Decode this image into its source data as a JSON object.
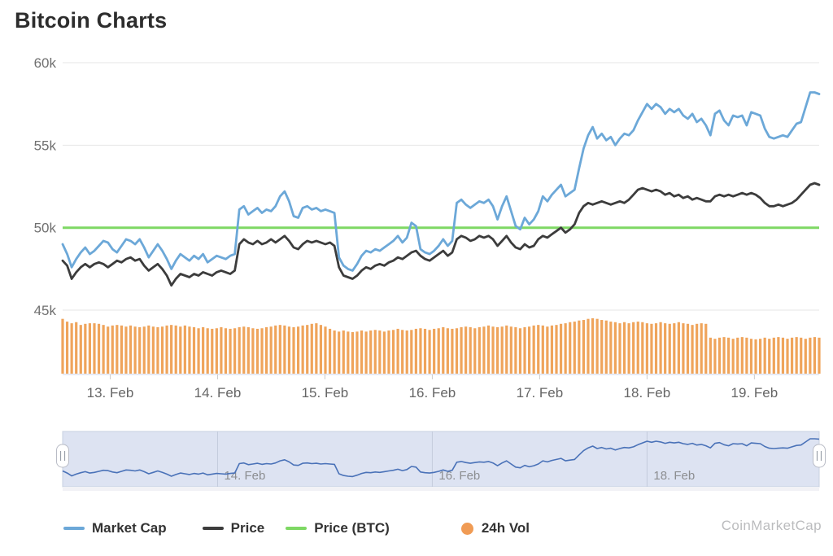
{
  "title": "Bitcoin Charts",
  "watermark": "CoinMarketCap",
  "legend": {
    "items": [
      {
        "label": "Market Cap",
        "color": "#6ca8d8",
        "swatch": "line"
      },
      {
        "label": "Price",
        "color": "#3c3c3c",
        "swatch": "line"
      },
      {
        "label": "Price (BTC)",
        "color": "#7ed864",
        "swatch": "line"
      },
      {
        "label": "24h Vol",
        "color": "#f09b54",
        "swatch": "dot"
      }
    ]
  },
  "chart_data": {
    "type": "line+bar",
    "title": "Bitcoin Charts",
    "interval": "hourly",
    "unit": "USD thousands (axis labels in k)",
    "grid": "horizontal gridlines on",
    "y_axis": {
      "labels": [
        "60k",
        "55k",
        "50k",
        "45k"
      ],
      "values": [
        60,
        55,
        50,
        45
      ],
      "ylim": [
        41,
        61
      ]
    },
    "x_ticks": [
      {
        "label": "13. Feb",
        "hour": 10.5
      },
      {
        "label": "14. Feb",
        "hour": 34.2
      },
      {
        "label": "15. Feb",
        "hour": 57.9
      },
      {
        "label": "16. Feb",
        "hour": 81.6
      },
      {
        "label": "17. Feb",
        "hour": 105.3
      },
      {
        "label": "18. Feb",
        "hour": 129.0
      },
      {
        "label": "19. Feb",
        "hour": 152.7
      }
    ],
    "series": [
      {
        "name": "Market Cap",
        "type": "line",
        "color": "#6ca8d8",
        "values": [
          49.0,
          48.4,
          47.6,
          48.1,
          48.5,
          48.8,
          48.4,
          48.6,
          48.9,
          49.2,
          49.1,
          48.7,
          48.5,
          48.9,
          49.3,
          49.2,
          49.0,
          49.3,
          48.8,
          48.2,
          48.6,
          49.0,
          48.6,
          48.1,
          47.5,
          48.0,
          48.4,
          48.2,
          48.0,
          48.3,
          48.1,
          48.4,
          47.9,
          48.1,
          48.3,
          48.2,
          48.1,
          48.3,
          48.4,
          51.1,
          51.3,
          50.8,
          51.0,
          51.2,
          50.9,
          51.1,
          51.0,
          51.3,
          51.9,
          52.2,
          51.6,
          50.7,
          50.6,
          51.2,
          51.3,
          51.1,
          51.2,
          51.0,
          51.1,
          51.0,
          50.9,
          48.2,
          47.7,
          47.5,
          47.4,
          47.8,
          48.3,
          48.6,
          48.5,
          48.7,
          48.6,
          48.8,
          49.0,
          49.2,
          49.5,
          49.1,
          49.4,
          50.3,
          50.1,
          48.7,
          48.5,
          48.4,
          48.6,
          48.9,
          49.3,
          48.9,
          49.2,
          51.5,
          51.7,
          51.4,
          51.2,
          51.4,
          51.6,
          51.5,
          51.7,
          51.3,
          50.5,
          51.3,
          51.9,
          51.0,
          50.1,
          49.9,
          50.6,
          50.2,
          50.5,
          51.0,
          51.9,
          51.6,
          52.0,
          52.3,
          52.6,
          51.9,
          52.1,
          52.3,
          53.6,
          54.8,
          55.6,
          56.1,
          55.4,
          55.7,
          55.3,
          55.5,
          55.0,
          55.4,
          55.7,
          55.6,
          55.9,
          56.5,
          57.0,
          57.5,
          57.2,
          57.5,
          57.3,
          56.9,
          57.2,
          57.0,
          57.2,
          56.8,
          56.6,
          56.9,
          56.4,
          56.6,
          56.2,
          55.6,
          56.9,
          57.1,
          56.5,
          56.2,
          56.8,
          56.7,
          56.8,
          56.2,
          57.0,
          56.9,
          56.8,
          56.0,
          55.5,
          55.4,
          55.5,
          55.6,
          55.5,
          55.9,
          56.3,
          56.4,
          57.3,
          58.2,
          58.2,
          58.1
        ]
      },
      {
        "name": "Price",
        "type": "line",
        "color": "#3c3c3c",
        "values": [
          48.0,
          47.7,
          46.9,
          47.3,
          47.6,
          47.8,
          47.6,
          47.8,
          47.9,
          47.8,
          47.6,
          47.8,
          48.0,
          47.9,
          48.1,
          48.2,
          48.0,
          48.1,
          47.7,
          47.4,
          47.6,
          47.8,
          47.5,
          47.1,
          46.5,
          46.9,
          47.2,
          47.1,
          47.0,
          47.2,
          47.1,
          47.3,
          47.2,
          47.1,
          47.3,
          47.4,
          47.3,
          47.2,
          47.4,
          49.0,
          49.3,
          49.1,
          49.0,
          49.2,
          49.0,
          49.1,
          49.3,
          49.1,
          49.3,
          49.5,
          49.2,
          48.8,
          48.7,
          49.0,
          49.2,
          49.1,
          49.2,
          49.1,
          49.0,
          49.1,
          48.9,
          47.6,
          47.1,
          47.0,
          46.9,
          47.1,
          47.4,
          47.6,
          47.5,
          47.7,
          47.8,
          47.7,
          47.9,
          48.0,
          48.2,
          48.1,
          48.3,
          48.5,
          48.6,
          48.3,
          48.1,
          48.0,
          48.2,
          48.4,
          48.6,
          48.3,
          48.5,
          49.3,
          49.5,
          49.4,
          49.2,
          49.3,
          49.5,
          49.4,
          49.5,
          49.3,
          48.9,
          49.2,
          49.5,
          49.1,
          48.8,
          48.7,
          49.0,
          48.8,
          48.9,
          49.3,
          49.5,
          49.4,
          49.6,
          49.8,
          50.0,
          49.7,
          49.9,
          50.2,
          50.9,
          51.3,
          51.5,
          51.4,
          51.5,
          51.6,
          51.5,
          51.4,
          51.5,
          51.6,
          51.5,
          51.7,
          52.0,
          52.3,
          52.4,
          52.3,
          52.2,
          52.3,
          52.2,
          52.0,
          52.1,
          51.9,
          52.0,
          51.8,
          51.9,
          51.7,
          51.8,
          51.7,
          51.6,
          51.6,
          51.9,
          52.0,
          51.9,
          52.0,
          51.9,
          52.0,
          52.1,
          52.0,
          52.1,
          52.0,
          51.8,
          51.5,
          51.3,
          51.3,
          51.4,
          51.3,
          51.4,
          51.5,
          51.7,
          52.0,
          52.3,
          52.6,
          52.7,
          52.6
        ]
      },
      {
        "name": "Price (BTC)",
        "type": "line",
        "color": "#7ed864",
        "constant_value": 50
      },
      {
        "name": "24h Vol",
        "type": "bar",
        "color": "#efa45b",
        "axis": "hidden",
        "values_relative_pct": [
          99,
          94,
          91,
          93,
          88,
          90,
          91,
          91,
          90,
          88,
          85,
          87,
          88,
          87,
          85,
          87,
          85,
          84,
          85,
          87,
          85,
          84,
          85,
          87,
          88,
          87,
          85,
          87,
          85,
          84,
          82,
          84,
          82,
          81,
          82,
          84,
          82,
          81,
          82,
          84,
          85,
          84,
          82,
          81,
          82,
          84,
          85,
          87,
          88,
          87,
          85,
          84,
          85,
          87,
          88,
          90,
          91,
          88,
          85,
          81,
          78,
          76,
          78,
          76,
          75,
          76,
          78,
          76,
          78,
          79,
          78,
          76,
          78,
          79,
          81,
          79,
          78,
          79,
          81,
          82,
          81,
          79,
          81,
          82,
          84,
          82,
          81,
          82,
          84,
          85,
          84,
          82,
          84,
          85,
          87,
          85,
          84,
          85,
          87,
          85,
          84,
          82,
          84,
          85,
          87,
          88,
          87,
          85,
          87,
          88,
          90,
          91,
          93,
          94,
          96,
          97,
          99,
          100,
          99,
          97,
          96,
          94,
          93,
          91,
          93,
          91,
          93,
          94,
          93,
          91,
          90,
          91,
          93,
          91,
          90,
          91,
          93,
          91,
          90,
          88,
          90,
          91,
          90,
          65,
          63,
          65,
          66,
          65,
          63,
          65,
          66,
          65,
          63,
          62,
          63,
          65,
          63,
          65,
          66,
          65,
          63,
          65,
          66,
          65,
          63,
          65,
          66,
          65
        ]
      }
    ],
    "navigator": {
      "shows_series": "Market Cap",
      "line_color": "#4a72b8",
      "background_color": "#dde3f2",
      "labels": [
        {
          "text": "14. Feb",
          "hour": 34.2
        },
        {
          "text": "16. Feb",
          "hour": 81.6
        },
        {
          "text": "18. Feb",
          "hour": 129.0
        }
      ],
      "selection": {
        "start_hour": 0,
        "end_hour": 167,
        "note": "full range selected"
      }
    }
  }
}
